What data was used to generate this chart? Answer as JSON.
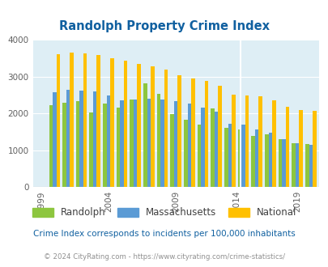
{
  "title": "Randolph Property Crime Index",
  "title_color": "#1060a0",
  "bg_color": "#deeef5",
  "fig_bg": "#ffffff",
  "years": [
    2000,
    2001,
    2002,
    2003,
    2004,
    2005,
    2006,
    2007,
    2008,
    2009,
    2010,
    2011,
    2012,
    2013,
    2015,
    2016,
    2017,
    2018,
    2019,
    2020
  ],
  "randolph": [
    2220,
    2290,
    2340,
    2030,
    2280,
    2150,
    2390,
    2820,
    2540,
    1990,
    1840,
    1700,
    2140,
    1610,
    1560,
    1380,
    1440,
    1290,
    1200,
    1170
  ],
  "massachusetts": [
    2580,
    2640,
    2620,
    2590,
    2490,
    2360,
    2390,
    2400,
    2390,
    2330,
    2270,
    2160,
    2060,
    1710,
    1700,
    1570,
    1480,
    1300,
    1190,
    1150
  ],
  "national": [
    3620,
    3660,
    3640,
    3600,
    3510,
    3440,
    3340,
    3280,
    3200,
    3050,
    2950,
    2890,
    2760,
    2510,
    2500,
    2460,
    2360,
    2190,
    2100,
    2080
  ],
  "bar_colors": {
    "randolph": "#8dc63f",
    "massachusetts": "#5b9bd5",
    "national": "#ffc000"
  },
  "ylim": [
    0,
    4000
  ],
  "yticks": [
    0,
    1000,
    2000,
    3000,
    4000
  ],
  "xtick_labels": [
    "1999",
    "2004",
    "2009",
    "2014",
    "2019"
  ],
  "footnote": "Crime Index corresponds to incidents per 100,000 inhabitants",
  "footnote2": "© 2024 CityRating.com - https://www.cityrating.com/crime-statistics/",
  "legend_labels": [
    "Randolph",
    "Massachusetts",
    "National"
  ]
}
